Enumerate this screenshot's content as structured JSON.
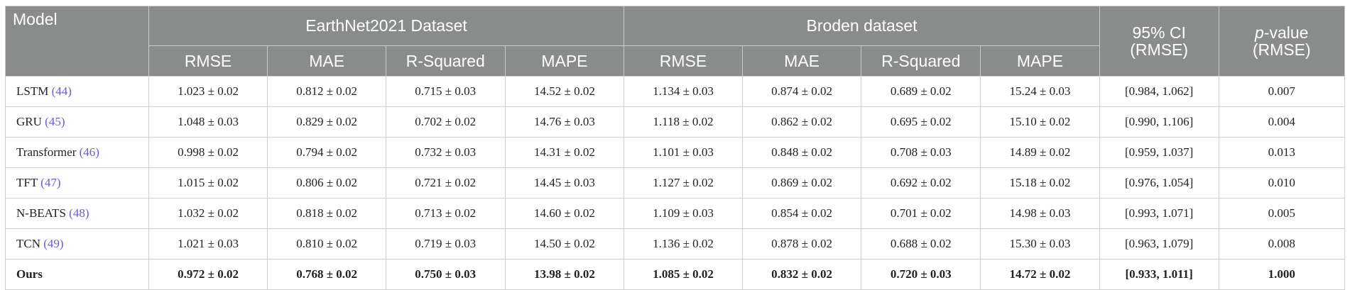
{
  "header": {
    "model": "Model",
    "group_earthnet": "EarthNet2021 Dataset",
    "group_broden": "Broden dataset",
    "ci_line1": "95% CI",
    "ci_line2": "(RMSE)",
    "p_italic": "p",
    "p_rest": "-value",
    "p_line2": "(RMSE)",
    "earthnet_metrics": [
      "RMSE",
      "MAE",
      "R-Squared",
      "MAPE"
    ],
    "broden_metrics": [
      "RMSE",
      "MAE",
      "R-Squared",
      "MAPE"
    ]
  },
  "rows": [
    {
      "model": "LSTM",
      "ref": "(44)",
      "earthnet": [
        "1.023 ± 0.02",
        "0.812 ± 0.02",
        "0.715 ± 0.03",
        "14.52 ± 0.02"
      ],
      "broden": [
        "1.134 ± 0.03",
        "0.874 ± 0.02",
        "0.689 ± 0.02",
        "15.24 ± 0.03"
      ],
      "ci": "[0.984, 1.062]",
      "p": "0.007"
    },
    {
      "model": "GRU",
      "ref": "(45)",
      "earthnet": [
        "1.048 ± 0.03",
        "0.829 ± 0.02",
        "0.702 ± 0.02",
        "14.76 ± 0.03"
      ],
      "broden": [
        "1.118 ± 0.02",
        "0.862 ± 0.02",
        "0.695 ± 0.02",
        "15.10 ± 0.02"
      ],
      "ci": "[0.990, 1.106]",
      "p": "0.004"
    },
    {
      "model": "Transformer",
      "ref": "(46)",
      "earthnet": [
        "0.998 ± 0.02",
        "0.794 ± 0.02",
        "0.732 ± 0.03",
        "14.31 ± 0.02"
      ],
      "broden": [
        "1.101 ± 0.03",
        "0.848 ± 0.02",
        "0.708 ± 0.03",
        "14.89 ± 0.02"
      ],
      "ci": "[0.959, 1.037]",
      "p": "0.013"
    },
    {
      "model": "TFT",
      "ref": "(47)",
      "earthnet": [
        "1.015 ± 0.02",
        "0.806 ± 0.02",
        "0.721 ± 0.02",
        "14.45 ± 0.03"
      ],
      "broden": [
        "1.127 ± 0.02",
        "0.869 ± 0.02",
        "0.692 ± 0.02",
        "15.18 ± 0.02"
      ],
      "ci": "[0.976, 1.054]",
      "p": "0.010"
    },
    {
      "model": "N-BEATS",
      "ref": "(48)",
      "earthnet": [
        "1.032 ± 0.02",
        "0.818 ± 0.02",
        "0.713 ± 0.02",
        "14.60 ± 0.02"
      ],
      "broden": [
        "1.109 ± 0.03",
        "0.854 ± 0.02",
        "0.701 ± 0.02",
        "14.98 ± 0.03"
      ],
      "ci": "[0.993, 1.071]",
      "p": "0.005"
    },
    {
      "model": "TCN",
      "ref": "(49)",
      "earthnet": [
        "1.021 ± 0.03",
        "0.810 ± 0.02",
        "0.719 ± 0.03",
        "14.50 ± 0.02"
      ],
      "broden": [
        "1.136 ± 0.02",
        "0.878 ± 0.02",
        "0.688 ± 0.02",
        "15.30 ± 0.03"
      ],
      "ci": "[0.963, 1.079]",
      "p": "0.008"
    },
    {
      "model": "Ours",
      "ref": "",
      "earthnet": [
        "0.972 ± 0.02",
        "0.768 ± 0.02",
        "0.750 ± 0.03",
        "13.98 ± 0.02"
      ],
      "broden": [
        "1.085 ± 0.02",
        "0.832 ± 0.02",
        "0.720 ± 0.03",
        "14.72 ± 0.02"
      ],
      "ci": "[0.933, 1.011]",
      "p": "1.000"
    }
  ],
  "colors": {
    "header_bg": "#8a8c8b",
    "header_text": "#ffffff",
    "reference_link": "#6b5bd6",
    "body_text": "#222222"
  }
}
